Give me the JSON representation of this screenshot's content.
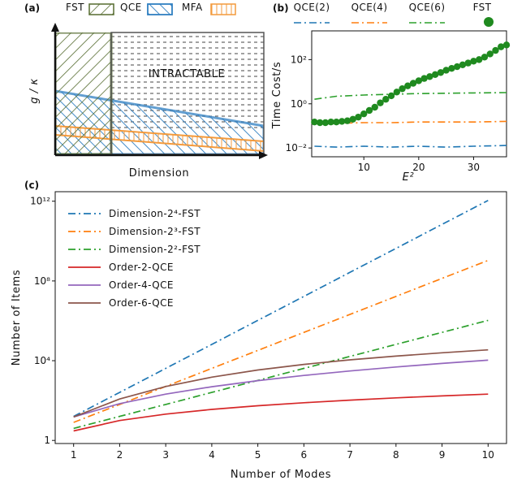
{
  "panel_a": {
    "letter": "(a)",
    "legend": [
      "FST",
      "QCE",
      "MFA"
    ],
    "region_label": "INTRACTABLE",
    "xlabel": "Dimension",
    "ylabel": "g / κ",
    "colors": {
      "FST": "#556b2f",
      "QCE": "#2f7fc1",
      "MFA": "#f39a3c"
    }
  },
  "chart_data": [
    {
      "type": "line",
      "panel": "(b)",
      "xlabel": "E²",
      "ylabel": "Time Cost/s",
      "yscale": "log",
      "xlim": [
        0.5,
        36
      ],
      "ylim": [
        0.004,
        2000
      ],
      "x_ticks": [
        10,
        20,
        30
      ],
      "y_ticks": [
        {
          "value": 0.01,
          "label": "10⁻²"
        },
        {
          "value": 1,
          "label": "10⁰"
        },
        {
          "value": 100,
          "label": "10²"
        }
      ],
      "legend_position": "top",
      "series": [
        {
          "name": "QCE(2)",
          "color": "#1f77b4",
          "style": "dashdot",
          "x": [
            1,
            5,
            10,
            15,
            20,
            25,
            30,
            36
          ],
          "values": [
            0.012,
            0.011,
            0.012,
            0.011,
            0.012,
            0.011,
            0.012,
            0.013
          ]
        },
        {
          "name": "QCE(4)",
          "color": "#ff7f0e",
          "style": "dashdot",
          "x": [
            1,
            5,
            10,
            15,
            20,
            25,
            30,
            36
          ],
          "values": [
            0.13,
            0.13,
            0.14,
            0.14,
            0.15,
            0.15,
            0.15,
            0.16
          ]
        },
        {
          "name": "QCE(6)",
          "color": "#2ca02c",
          "style": "dashdot",
          "x": [
            1,
            5,
            10,
            15,
            20,
            25,
            30,
            36
          ],
          "values": [
            1.6,
            2.2,
            2.5,
            2.7,
            2.9,
            3.0,
            3.1,
            3.2
          ]
        },
        {
          "name": "FST",
          "color": "#1f8a1f",
          "style": "markers",
          "x": [
            1,
            2,
            3,
            4,
            5,
            6,
            7,
            8,
            9,
            10,
            11,
            12,
            13,
            14,
            15,
            16,
            17,
            18,
            19,
            20,
            21,
            22,
            23,
            24,
            25,
            26,
            27,
            28,
            29,
            30,
            31,
            32,
            33,
            34,
            35,
            36
          ],
          "values": [
            0.15,
            0.14,
            0.14,
            0.15,
            0.15,
            0.16,
            0.17,
            0.2,
            0.25,
            0.35,
            0.5,
            0.7,
            1.1,
            1.6,
            2.3,
            3.4,
            4.8,
            6.5,
            8.5,
            11,
            14,
            17,
            21,
            26,
            33,
            40,
            48,
            58,
            70,
            85,
            100,
            130,
            180,
            260,
            380,
            460
          ]
        }
      ]
    },
    {
      "type": "line",
      "panel": "(c)",
      "xlabel": "Number of Modes",
      "ylabel": "Number of Items",
      "yscale": "log",
      "xlim": [
        0.6,
        10.4
      ],
      "ylim": [
        0.7,
        3000000000000.0
      ],
      "x_ticks": [
        1,
        2,
        3,
        4,
        5,
        6,
        7,
        8,
        9,
        10
      ],
      "y_ticks": [
        {
          "value": 1,
          "label": "1"
        },
        {
          "value": 10000,
          "label": "10⁴"
        },
        {
          "value": 100000000,
          "label": "10⁸"
        },
        {
          "value": 1000000000000,
          "label": "10¹²"
        }
      ],
      "legend_position": "top-left",
      "x": [
        1,
        2,
        3,
        4,
        5,
        6,
        7,
        8,
        9,
        10
      ],
      "series": [
        {
          "name": "Dimension-2⁴-FST",
          "color": "#1f77b4",
          "style": "dashdot",
          "values": [
            16,
            256,
            4096,
            65536,
            1048576,
            16777216,
            268435456,
            4294967296,
            68719476736,
            1099511627776
          ]
        },
        {
          "name": "Dimension-2³-FST",
          "color": "#ff7f0e",
          "style": "dashdot",
          "values": [
            8,
            64,
            512,
            4096,
            32768,
            262144,
            2097152,
            16777216,
            134217728,
            1073741824
          ]
        },
        {
          "name": "Dimension-2²-FST",
          "color": "#2ca02c",
          "style": "dashdot",
          "values": [
            4,
            16,
            64,
            256,
            1024,
            4096,
            16384,
            65536,
            262144,
            1048576
          ]
        },
        {
          "name": "Order-2-QCE",
          "color": "#d62728",
          "style": "solid",
          "values": [
            3,
            10,
            21,
            36,
            55,
            78,
            105,
            136,
            171,
            210
          ]
        },
        {
          "name": "Order-4-QCE",
          "color": "#9467bd",
          "style": "solid",
          "values": [
            15,
            70,
            210,
            495,
            1001,
            1820,
            3060,
            4845,
            7315,
            10626
          ]
        },
        {
          "name": "Order-6-QCE",
          "color": "#8c564b",
          "style": "solid",
          "values": [
            15,
            120,
            510,
            1500,
            3400,
            6500,
            11000,
            17000,
            25000,
            35000
          ]
        }
      ]
    }
  ]
}
